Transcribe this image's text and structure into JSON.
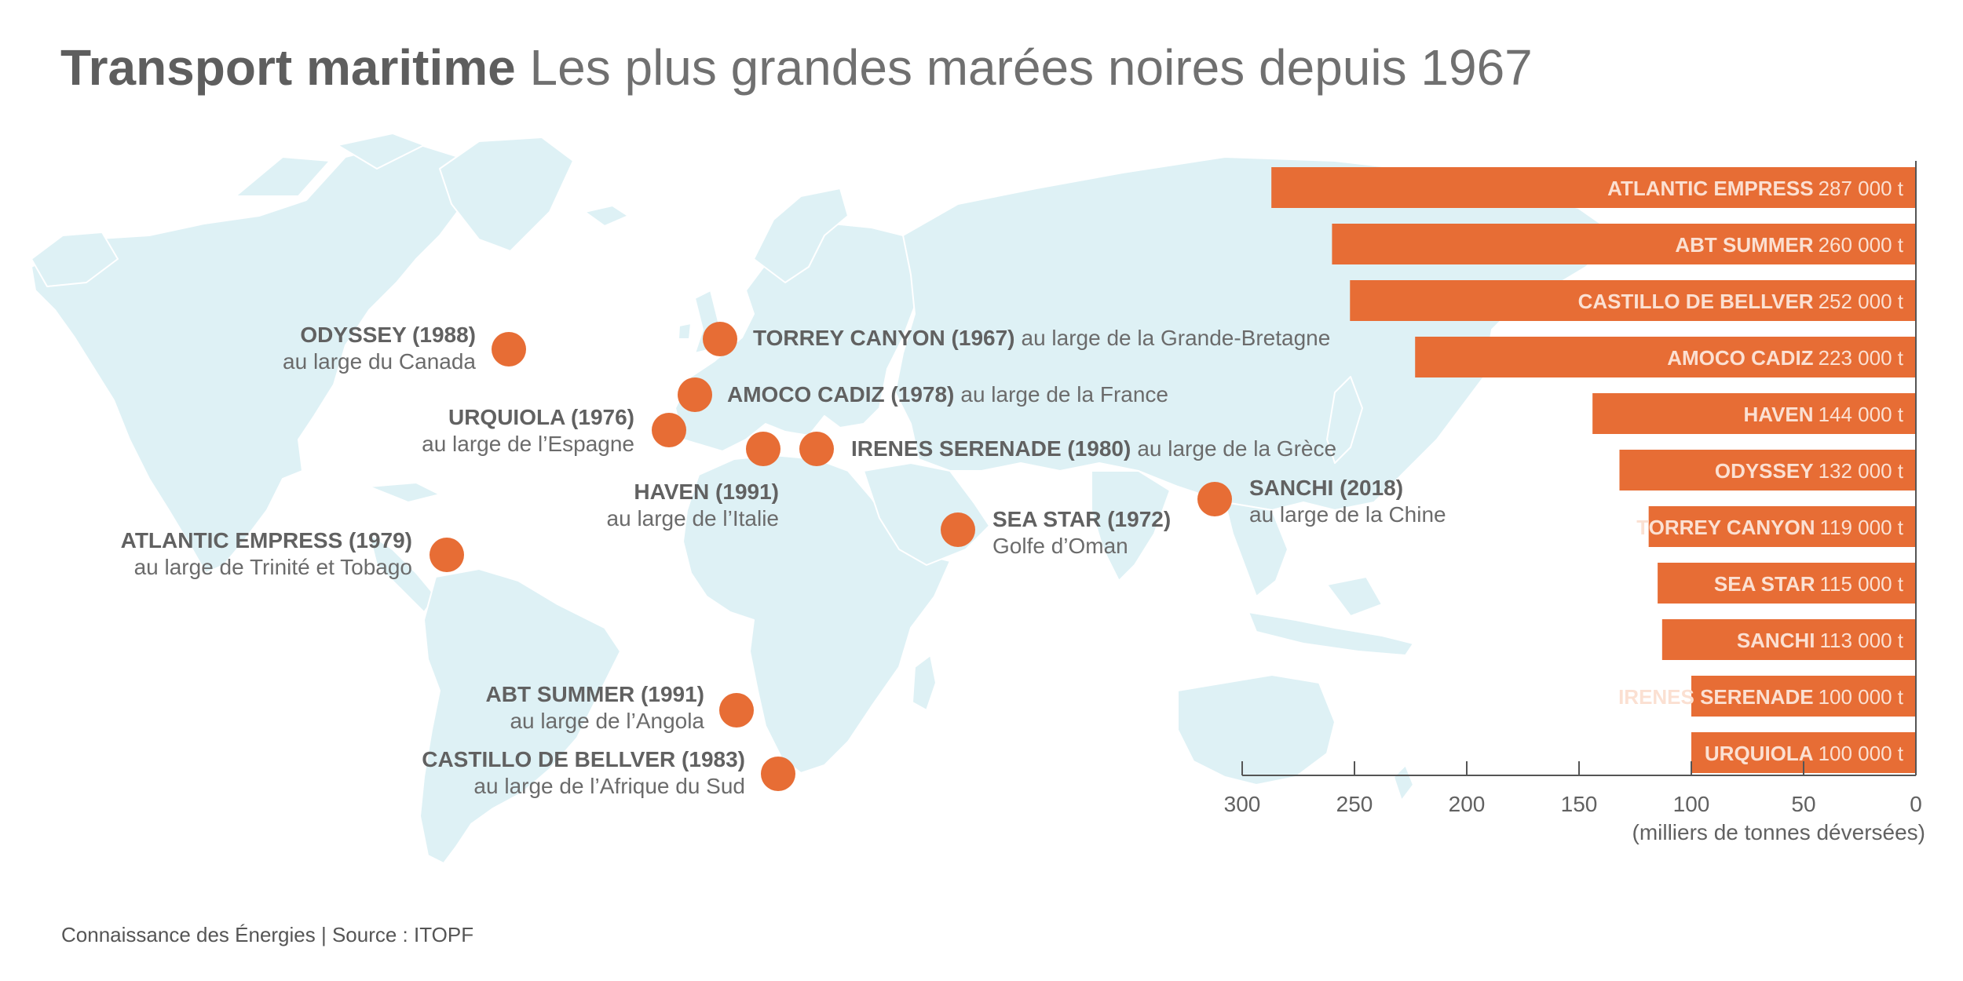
{
  "title": {
    "bold": "Transport maritime",
    "light": "Les plus grandes marées noires depuis 1967"
  },
  "footer": "Connaissance des Énergies | Source : ITOPF",
  "colors": {
    "accent": "#e76d35",
    "map_land": "#def1f5",
    "map_border": "#ffffff",
    "text": "#616161",
    "bar_label": "#fbe0d2"
  },
  "map_markers": [
    {
      "name": "ODYSSEY (1988)",
      "place": "au large du Canada"
    },
    {
      "name": "TORREY CANYON (1967)",
      "place": "au large de la Grande-Bretagne"
    },
    {
      "name": "AMOCO CADIZ (1978)",
      "place": "au large de la France"
    },
    {
      "name": "URQUIOLA (1976)",
      "place": "au large de l’Espagne"
    },
    {
      "name": "IRENES SERENADE (1980)",
      "place": "au large de la Grèce"
    },
    {
      "name": "HAVEN (1991)",
      "place": "au large de l’Italie"
    },
    {
      "name": "SANCHI (2018)",
      "place": "au large de la Chine"
    },
    {
      "name": "SEA STAR (1972)",
      "place": "Golfe d’Oman"
    },
    {
      "name": "ATLANTIC EMPRESS (1979)",
      "place": "au large de Trinité et Tobago"
    },
    {
      "name": "ABT SUMMER (1991)",
      "place": "au large de l’Angola"
    },
    {
      "name": "CASTILLO DE BELLVER (1983)",
      "place": "au large de l’Afrique du Sud"
    }
  ],
  "chart_data": {
    "type": "bar",
    "orientation": "horizontal",
    "categories": [
      "ATLANTIC EMPRESS",
      "ABT SUMMER",
      "CASTILLO DE BELLVER",
      "AMOCO CADIZ",
      "HAVEN",
      "ODYSSEY",
      "TORREY CANYON",
      "SEA STAR",
      "SANCHI",
      "IRENES SERENADE",
      "URQUIOLA"
    ],
    "values": [
      287,
      260,
      252,
      223,
      144,
      132,
      119,
      115,
      113,
      100,
      100
    ],
    "value_labels": [
      "287 000 t",
      "260 000 t",
      "252 000 t",
      "223 000 t",
      "144 000 t",
      "132 000 t",
      "119 000 t",
      "115 000 t",
      "113 000 t",
      "100 000 t",
      "100 000 t"
    ],
    "xlim": [
      300,
      0
    ],
    "xticks": [
      300,
      250,
      200,
      150,
      100,
      50,
      0
    ],
    "xlabel": "(milliers de tonnes déversées)",
    "ylabel": "",
    "grid": false
  }
}
